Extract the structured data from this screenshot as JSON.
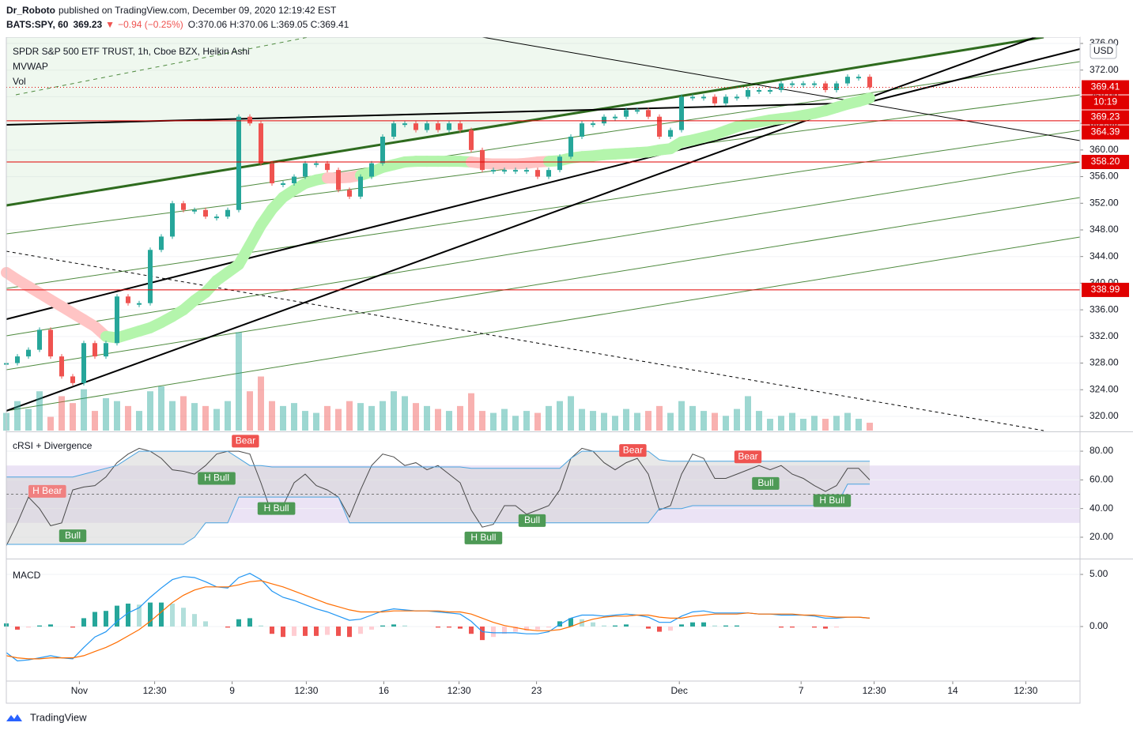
{
  "header": {
    "author": "Dr_Roboto",
    "published": "published on TradingView.com, December 09, 2020 12:19:42 EST",
    "symbol": "BATS:SPY, 60",
    "last": "369.23",
    "change_arrow": "▼",
    "change": "−0.94 (−0.25%)",
    "ohlc": "O:370.06 H:370.06 L:369.05 C:369.41"
  },
  "chart_data": [
    {
      "type": "candlestick",
      "title": "SPDR S&P 500 ETF TRUST, 1h, Cboe BZX, Heikin Ashi",
      "indicators": [
        "MVWAP",
        "Vol"
      ],
      "currency": "USD",
      "xlim": [
        0,
        97
      ],
      "ylim": [
        317.86,
        376.95
      ],
      "yticks": [
        {
          "value": 320,
          "label": "320.00"
        },
        {
          "value": 324,
          "label": "324.00"
        },
        {
          "value": 328,
          "label": "328.00"
        },
        {
          "value": 332,
          "label": "332.00"
        },
        {
          "value": 336,
          "label": "336.00"
        },
        {
          "value": 340,
          "label": "340.00"
        },
        {
          "value": 344,
          "label": "344.00"
        },
        {
          "value": 348,
          "label": "348.00"
        },
        {
          "value": 352,
          "label": "352.00"
        },
        {
          "value": 356,
          "label": "356.00"
        },
        {
          "value": 360,
          "label": "360.00"
        },
        {
          "value": 364,
          "label": "364.00"
        },
        {
          "value": 368,
          "label": "368.00"
        },
        {
          "value": 372,
          "label": "372.00"
        },
        {
          "value": 376,
          "label": "376.00"
        }
      ],
      "up_color": "#26a69a",
      "down_color": "#ef5350",
      "closes": [
        328,
        329,
        330,
        333,
        329,
        326,
        325,
        331,
        329,
        331,
        338,
        337,
        337,
        345,
        347,
        352,
        351,
        351,
        350,
        350,
        351,
        365,
        364,
        358,
        355,
        355,
        356,
        358,
        358,
        357,
        354,
        353,
        356,
        358,
        362,
        364,
        364,
        363,
        364,
        363,
        364,
        363,
        360,
        357,
        357,
        357,
        357,
        357,
        356,
        357,
        359,
        362,
        364,
        364,
        365,
        365,
        366,
        366,
        365,
        362,
        363,
        368,
        368,
        368,
        367,
        368,
        368,
        369,
        369,
        369,
        370,
        370,
        370,
        370,
        369,
        370,
        371,
        371,
        369.41
      ],
      "mvwap": {
        "above_color": "#ffc4c4",
        "below_color": "#b4f5ac",
        "values": [
          341.6,
          340.5,
          339.5,
          338.5,
          337.5,
          336.5,
          335.5,
          334.5,
          333.5,
          332,
          331.8,
          332.3,
          332.8,
          333.3,
          334.1,
          335,
          336,
          337.4,
          338.6,
          340.4,
          341.6,
          342.8,
          345.7,
          348.7,
          351.1,
          352.9,
          354,
          355,
          355.5,
          355.8,
          355.8,
          355.9,
          356.2,
          356.7,
          357.4,
          357.8,
          358.2,
          358.3,
          358.3,
          358.3,
          358.3,
          358.3,
          358.2,
          358,
          357.9,
          357.9,
          357.9,
          358,
          358.2,
          358.3,
          358.4,
          358.8,
          359,
          359.1,
          359.3,
          359.4,
          359.5,
          359.6,
          359.7,
          360,
          360.2,
          361.2,
          361.5,
          361.9,
          362.3,
          362.9,
          363.5,
          363.9,
          364.2,
          364.5,
          364.7,
          364.9,
          365.2,
          365.5,
          365.9,
          366.4,
          366.9,
          367.3,
          367.8
        ]
      },
      "volume": {
        "vlim": [
          0,
          400
        ],
        "values": [
          18,
          30,
          22,
          40,
          14,
          35,
          28,
          42,
          20,
          33,
          30,
          25,
          20,
          40,
          45,
          30,
          35,
          28,
          25,
          22,
          30,
          100,
          40,
          55,
          30,
          25,
          28,
          20,
          18,
          25,
          22,
          30,
          28,
          25,
          30,
          40,
          35,
          28,
          25,
          22,
          20,
          25,
          38,
          20,
          18,
          22,
          15,
          20,
          18,
          25,
          30,
          35,
          22,
          20,
          18,
          15,
          22,
          18,
          20,
          25,
          18,
          30,
          25,
          20,
          18,
          15,
          22,
          35,
          20,
          12,
          15,
          18,
          12,
          15,
          12,
          15,
          18,
          12,
          8
        ]
      },
      "level_color": "#e00000",
      "levels": [
        {
          "value": 364.39,
          "label": "364.39"
        },
        {
          "value": 358.2,
          "label": "358.20"
        },
        {
          "value": 338.99,
          "label": "338.99"
        }
      ],
      "last_price": {
        "value": 369.41,
        "label": "369.41",
        "countdown": "10:19"
      },
      "prev_close": {
        "value": 369.23,
        "label": "369.23"
      }
    },
    {
      "type": "band-line",
      "title": "cRSI + Divergence",
      "xlim": [
        0,
        97
      ],
      "ylim": [
        6.2,
        92.7
      ],
      "yticks": [
        {
          "value": 20,
          "label": "20.00"
        },
        {
          "value": 40,
          "label": "40.00"
        },
        {
          "value": 60,
          "label": "60.00"
        },
        {
          "value": 80,
          "label": "80.00"
        }
      ],
      "zone": [
        30,
        70
      ],
      "zone_color": "#e6dcf2",
      "midline": 50,
      "band_fill": "#d6d6d6",
      "series": [
        {
          "color": "#4a4a4a",
          "values": [
            14,
            30,
            48,
            40,
            28,
            30,
            53,
            55,
            56,
            62,
            72,
            78,
            82,
            80,
            75,
            67,
            66,
            64,
            70,
            78,
            80,
            80,
            78,
            58,
            36,
            42,
            58,
            64,
            56,
            53,
            48,
            34,
            53,
            70,
            78,
            76,
            70,
            72,
            67,
            70,
            64,
            58,
            39,
            27,
            29,
            42,
            42,
            36,
            39,
            42,
            53,
            75,
            82,
            80,
            72,
            67,
            72,
            75,
            64,
            39,
            42,
            64,
            78,
            75,
            61,
            61,
            64,
            67,
            70,
            67,
            70,
            64,
            61,
            56,
            52,
            56,
            68,
            68,
            60
          ]
        },
        {
          "color": "#4aa3df",
          "values": [
            62,
            62,
            62,
            62,
            62,
            62,
            62,
            64,
            66,
            68,
            70,
            75,
            80,
            80,
            80,
            80,
            80,
            80,
            80,
            80,
            80,
            75,
            70,
            70,
            69,
            69,
            69,
            69,
            69,
            69,
            69,
            69,
            69,
            69,
            69,
            69,
            69,
            69,
            69,
            69,
            69,
            69,
            68,
            68,
            68,
            68,
            68,
            68,
            68,
            68,
            68,
            75,
            80,
            80,
            80,
            80,
            80,
            80,
            80,
            74,
            73,
            73,
            73,
            73,
            73,
            73,
            73,
            73,
            73,
            73,
            73,
            73,
            73,
            73,
            73,
            73,
            73,
            73,
            73
          ]
        },
        {
          "color": "#4aa3df",
          "values": [
            15,
            15,
            15,
            15,
            15,
            15,
            15,
            15,
            15,
            15,
            15,
            15,
            15,
            15,
            15,
            15,
            15,
            20,
            30,
            30,
            30,
            48,
            48,
            48,
            48,
            48,
            48,
            48,
            48,
            48,
            48,
            30,
            30,
            30,
            30,
            30,
            30,
            30,
            30,
            30,
            30,
            30,
            30,
            30,
            30,
            30,
            30,
            30,
            30,
            30,
            30,
            30,
            30,
            30,
            30,
            30,
            30,
            30,
            30,
            40,
            40,
            40,
            42,
            42,
            42,
            42,
            42,
            42,
            42,
            42,
            42,
            42,
            42,
            42,
            42,
            42,
            57,
            57,
            57
          ]
        }
      ],
      "divergences": [
        {
          "label": "H Bear",
          "x": 3.7,
          "y": 52,
          "color": "#f08080"
        },
        {
          "label": "Bull",
          "x": 6,
          "y": 21,
          "color": "#4e9a56"
        },
        {
          "label": "Bear",
          "x": 21.6,
          "y": 87,
          "color": "#ef5350"
        },
        {
          "label": "H Bull",
          "x": 19,
          "y": 61,
          "color": "#4e9a56"
        },
        {
          "label": "H Bull",
          "x": 24.4,
          "y": 40,
          "color": "#4e9a56"
        },
        {
          "label": "H Bull",
          "x": 43.1,
          "y": 19.5,
          "color": "#4e9a56"
        },
        {
          "label": "Bull",
          "x": 47.5,
          "y": 31.6,
          "color": "#4e9a56"
        },
        {
          "label": "Bear",
          "x": 56.6,
          "y": 80.5,
          "color": "#ef5350"
        },
        {
          "label": "Bear",
          "x": 67,
          "y": 76,
          "color": "#ef5350"
        },
        {
          "label": "Bull",
          "x": 68.6,
          "y": 57.5,
          "color": "#4e9a56"
        },
        {
          "label": "H Bull",
          "x": 74.6,
          "y": 45.5,
          "color": "#4e9a56"
        }
      ]
    },
    {
      "type": "macd",
      "title": "MACD",
      "xlim": [
        0,
        97
      ],
      "ylim": [
        -5.08,
        6.29
      ],
      "yticks": [
        {
          "value": 0,
          "label": "0.00"
        },
        {
          "value": 5,
          "label": "5.00"
        }
      ],
      "series": [
        {
          "color": "#2196f3",
          "values": [
            -2.5,
            -3.3,
            -3.2,
            -3,
            -2.8,
            -3,
            -3.1,
            -2,
            -1,
            -0.5,
            0.5,
            1.3,
            1.8,
            2.8,
            3.7,
            4.5,
            4.8,
            4.7,
            4.3,
            3.8,
            3.7,
            4.7,
            5.1,
            4.5,
            3.4,
            2.8,
            2.5,
            2.1,
            1.7,
            1.4,
            1,
            0.6,
            0.7,
            1.1,
            1.5,
            1.7,
            1.6,
            1.5,
            1.5,
            1.4,
            1.3,
            1.2,
            0.5,
            -0.5,
            -0.6,
            -0.6,
            -0.6,
            -0.7,
            -0.7,
            -0.5,
            0.2,
            0.8,
            1.1,
            1.1,
            1,
            1.1,
            1.2,
            1.1,
            0.9,
            0.4,
            0.4,
            1,
            1.4,
            1.5,
            1.3,
            1.3,
            1.3,
            1.3,
            1.2,
            1.2,
            1.1,
            1.1,
            1.1,
            1,
            0.8,
            0.8,
            0.9,
            0.9,
            0.8
          ]
        },
        {
          "color": "#ff6d00",
          "values": [
            -2.8,
            -3,
            -3.1,
            -3.1,
            -3,
            -3,
            -3,
            -2.8,
            -2.4,
            -2,
            -1.5,
            -0.9,
            -0.3,
            0.5,
            1.4,
            2.3,
            3,
            3.5,
            3.8,
            3.8,
            3.8,
            4,
            4.3,
            4.4,
            4.1,
            3.8,
            3.4,
            3,
            2.6,
            2.2,
            1.9,
            1.6,
            1.4,
            1.4,
            1.4,
            1.5,
            1.5,
            1.5,
            1.5,
            1.5,
            1.4,
            1.4,
            1.2,
            0.8,
            0.4,
            0.1,
            -0.1,
            -0.3,
            -0.4,
            -0.4,
            -0.3,
            0,
            0.4,
            0.7,
            0.9,
            1,
            1,
            1.1,
            1.1,
            0.9,
            0.8,
            0.8,
            1,
            1.1,
            1.2,
            1.2,
            1.2,
            1.3,
            1.2,
            1.2,
            1.2,
            1.2,
            1.1,
            1.1,
            1,
            0.9,
            0.9,
            0.9,
            0.8
          ]
        }
      ],
      "histogram": {
        "colors": [
          "#26a69a",
          "#b2dfdb",
          "#ffcdd2",
          "#ef5350"
        ],
        "values": [
          0.3,
          -0.3,
          -0.1,
          0.1,
          0.2,
          0,
          -0.1,
          0.8,
          1.4,
          1.5,
          2,
          2.2,
          2.1,
          2.3,
          2.3,
          2.2,
          1.8,
          1.2,
          0.5,
          0,
          -0.1,
          0.7,
          0.8,
          0.1,
          -0.7,
          -1,
          -0.9,
          -0.9,
          -0.9,
          -0.8,
          -0.9,
          -1,
          -0.7,
          -0.3,
          0.1,
          0.2,
          0.1,
          0,
          0,
          -0.1,
          -0.1,
          -0.2,
          -0.7,
          -1.3,
          -1,
          -0.7,
          -0.5,
          -0.4,
          -0.3,
          -0.1,
          0.5,
          0.8,
          0.7,
          0.4,
          0.1,
          0.1,
          0.2,
          0,
          -0.2,
          -0.5,
          -0.4,
          0.2,
          0.4,
          0.4,
          0.1,
          0.1,
          0.1,
          0,
          0,
          0,
          -0.1,
          -0.1,
          0,
          -0.1,
          -0.2,
          -0.1,
          0,
          0,
          0
        ]
      },
      "xticks": [
        {
          "value": 6.6,
          "label": "Nov"
        },
        {
          "value": 13.4,
          "label": "12:30"
        },
        {
          "value": 20.4,
          "label": "9"
        },
        {
          "value": 27.1,
          "label": "12:30"
        },
        {
          "value": 34.1,
          "label": "16"
        },
        {
          "value": 40.9,
          "label": "12:30"
        },
        {
          "value": 47.9,
          "label": "23"
        },
        {
          "value": 60.8,
          "label": "Dec"
        },
        {
          "value": 71.8,
          "label": "7"
        },
        {
          "value": 78.4,
          "label": "12:30"
        },
        {
          "value": 85.5,
          "label": "14"
        },
        {
          "value": 92.1,
          "label": "12:30"
        }
      ]
    }
  ],
  "footer": {
    "brand": "TradingView"
  }
}
